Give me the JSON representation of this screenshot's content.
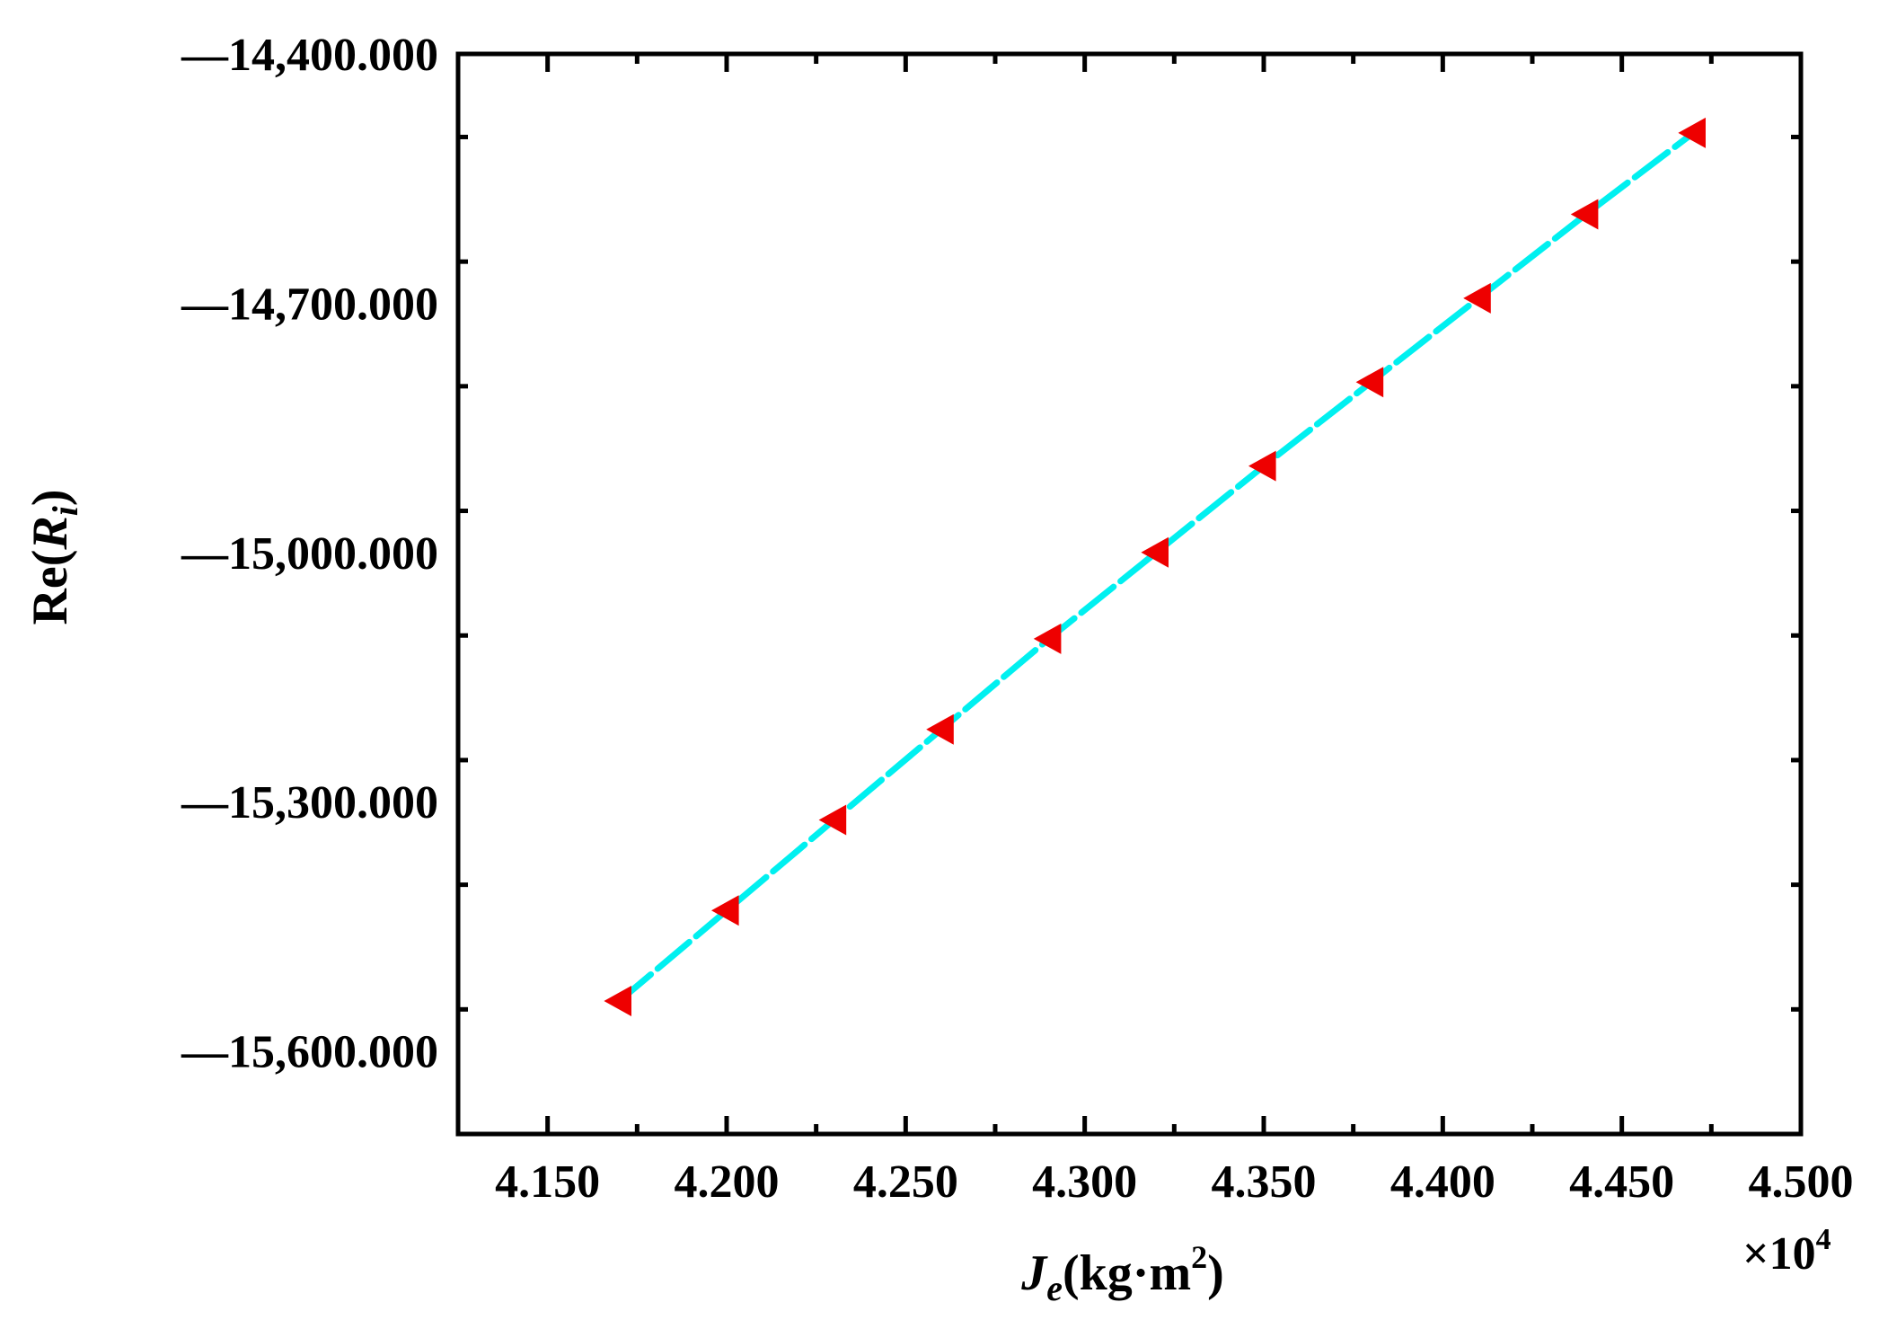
{
  "chart_data": {
    "type": "line",
    "xlabel": {
      "main": "J",
      "sub": "e",
      "unit_pre": "(kg·m",
      "unit_sup": "2",
      "unit_post": ")"
    },
    "ylabel": {
      "pre": "Re(",
      "main": "R",
      "sub": "i",
      "post": ")"
    },
    "x_multiplier": "×10",
    "x_multiplier_exp": "4",
    "xlim": [
      4.125,
      4.5
    ],
    "ylim": [
      -15700,
      -14400
    ],
    "x_ticks": [
      4.15,
      4.2,
      4.25,
      4.3,
      4.35,
      4.4,
      4.45,
      4.5
    ],
    "x_tick_labels": [
      "4.150",
      "4.200",
      "4.250",
      "4.300",
      "4.350",
      "4.400",
      "4.450",
      "4.500"
    ],
    "y_ticks": [
      -14400,
      -14700,
      -15000,
      -15300,
      -15600
    ],
    "y_tick_labels": [
      "—14,400.000",
      "—14,700.000",
      "—15,000.000",
      "—15,300.000",
      "—15,600.000"
    ],
    "y_minor_step": 150,
    "series": [
      {
        "x": [
          4.17,
          4.2,
          4.23,
          4.26,
          4.29,
          4.32,
          4.35,
          4.38,
          4.41,
          4.44,
          4.47
        ],
        "y": [
          -15540,
          -15431,
          -15322,
          -15213,
          -15104,
          -15000,
          -14896,
          -14795,
          -14694,
          -14593,
          -14495
        ],
        "line_color": "#00f0f0",
        "line_style": "dashed",
        "marker": "left-triangle",
        "marker_color": "#ee0000"
      }
    ],
    "grid": false,
    "legend": "none"
  }
}
